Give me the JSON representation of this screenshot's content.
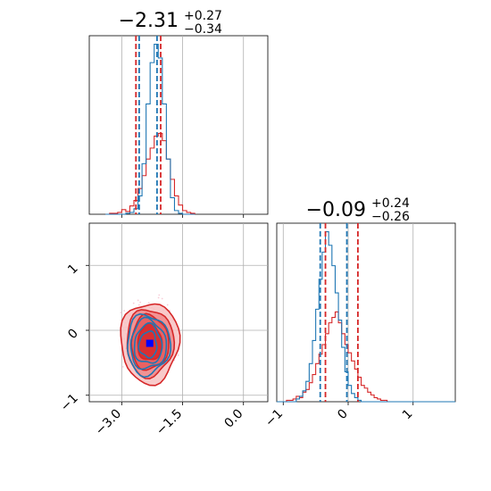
{
  "chart_data": [
    {
      "type": "histogram",
      "panel": "top-left",
      "title": "−2.31",
      "title_upper": "+0.27",
      "title_lower": "−0.34",
      "xlim": [
        -3.8,
        0.6
      ],
      "grid": true,
      "bins": {
        "start": -3.4,
        "width": 0.1,
        "red": [
          0,
          1,
          1,
          2,
          5,
          3,
          9,
          15,
          28,
          42,
          60,
          72,
          85,
          88,
          80,
          60,
          38,
          20,
          10,
          4,
          2,
          1
        ],
        "blue": [
          0,
          0,
          0,
          0,
          0,
          1,
          2,
          6,
          20,
          55,
          120,
          165,
          185,
          170,
          120,
          60,
          18,
          4,
          1,
          0,
          0,
          0
        ]
      },
      "quantiles": {
        "red": [
          -2.65,
          -2.04
        ],
        "blue": [
          -2.57,
          -2.13
        ]
      }
    },
    {
      "type": "histogram",
      "panel": "bottom-right",
      "title": "−0.09",
      "title_upper": "+0.24",
      "title_lower": "−0.26",
      "xlim": [
        -1.1,
        1.65
      ],
      "xticks": [
        -1,
        0,
        1
      ],
      "xtick_labels": [
        "−1",
        "0",
        "1"
      ],
      "grid": true,
      "bins": {
        "start": -1.1,
        "width": 0.05,
        "red": [
          0,
          0,
          0,
          1,
          1,
          2,
          4,
          3,
          7,
          9,
          14,
          20,
          28,
          35,
          42,
          50,
          58,
          62,
          66,
          58,
          50,
          42,
          36,
          30,
          24,
          18,
          12,
          10,
          7,
          5,
          3,
          2,
          1,
          1,
          0,
          0,
          0,
          0,
          0,
          0,
          0,
          0,
          0,
          0,
          0,
          0,
          0,
          0,
          0,
          0,
          0,
          0,
          0,
          0,
          0
        ],
        "blue": [
          0,
          0,
          0,
          0,
          0,
          0,
          2,
          4,
          8,
          15,
          28,
          45,
          68,
          90,
          110,
          125,
          115,
          100,
          80,
          60,
          40,
          22,
          12,
          6,
          3,
          1,
          0,
          0,
          0,
          0,
          0,
          0,
          0,
          0,
          0,
          0,
          0,
          0,
          0,
          0,
          0,
          0,
          0,
          0,
          0,
          0,
          0,
          0,
          0,
          0,
          0,
          0,
          0,
          0,
          0
        ]
      },
      "quantiles": {
        "red": [
          -0.35,
          0.15
        ],
        "blue": [
          -0.43,
          -0.02
        ]
      }
    },
    {
      "type": "contour",
      "panel": "bottom-left",
      "xlim": [
        -3.8,
        0.6
      ],
      "ylim": [
        -1.1,
        1.65
      ],
      "xticks": [
        -3.0,
        -1.5,
        0.0
      ],
      "xtick_labels": [
        "−3.0",
        "−1.5",
        "0.0"
      ],
      "yticks": [
        -1,
        0,
        1
      ],
      "ytick_labels": [
        "−1",
        "0",
        "1"
      ],
      "grid": true,
      "red": {
        "center": [
          -2.31,
          -0.09
        ],
        "levels": [
          [
            0.3,
            0.28
          ],
          [
            0.46,
            0.42
          ],
          [
            0.58,
            0.52
          ],
          [
            0.72,
            0.62
          ]
        ]
      },
      "blue": {
        "center": [
          -2.35,
          -0.22
        ],
        "levels": [
          [
            0.22,
            0.2
          ],
          [
            0.34,
            0.3
          ],
          [
            0.44,
            0.38
          ],
          [
            0.53,
            0.46
          ]
        ]
      },
      "marker": {
        "x": -2.31,
        "y": -0.2,
        "color": "#0000ff"
      }
    }
  ],
  "colors": {
    "red": "#d62728",
    "blue": "#1f77b4",
    "fill_red": "#f4a6a6",
    "marker": "#0000ff"
  }
}
